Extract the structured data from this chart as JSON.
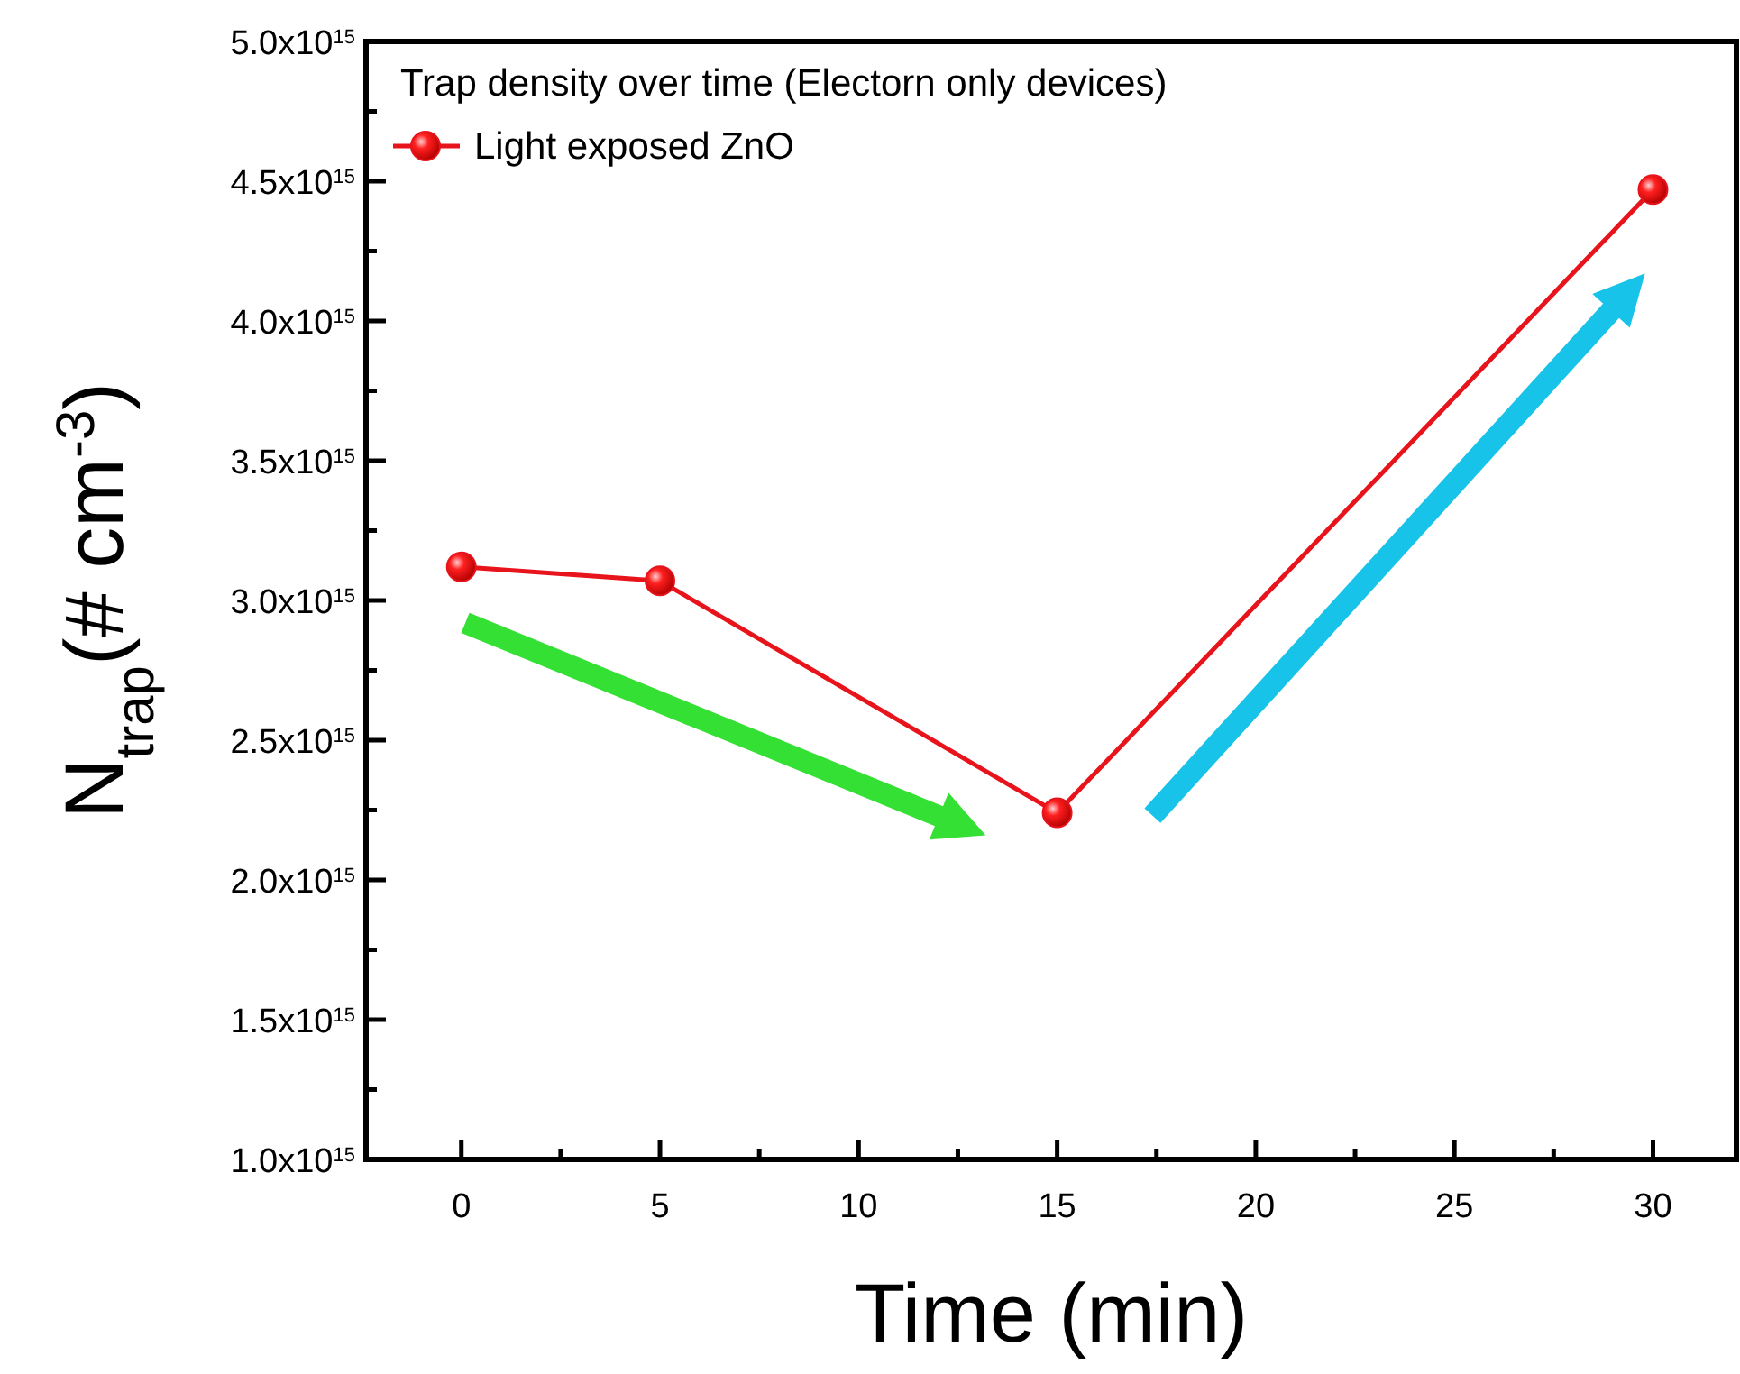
{
  "chart_data": {
    "type": "line",
    "legend_title": "Trap density over time (Electorn only devices)",
    "xlabel": "Time (min)",
    "ylabel": "N$_{trap}$(# cm$^{-3}$)",
    "x": [
      0,
      5,
      15,
      30
    ],
    "series": [
      {
        "name": "Light exposed ZnO",
        "color": "#e8141b",
        "values": [
          3120000000000000.0,
          3070000000000000.0,
          2240000000000000.0,
          4470000000000000.0
        ]
      }
    ],
    "xlim": [
      -2.4,
      32.1
    ],
    "xticks": [
      0,
      {
        "value": 2.5,
        "label": null
      },
      5,
      {
        "value": 7.5,
        "label": null
      },
      10,
      {
        "value": 12.5,
        "label": null
      },
      15,
      {
        "value": 17.5,
        "label": null
      },
      20,
      {
        "value": 22.5,
        "label": null
      },
      25,
      {
        "value": 27.5,
        "label": null
      },
      30
    ],
    "ylim": [
      1000000000000000.0,
      5000000000000000.0
    ],
    "yticks": [
      {
        "value": 1000000000000000.0,
        "label": "1.0x10$^{15}$"
      },
      {
        "value": 1250000000000000.0,
        "label": null
      },
      {
        "value": 1500000000000000.0,
        "label": "1.5x10$^{15}$"
      },
      {
        "value": 1750000000000000.0,
        "label": null
      },
      {
        "value": 2000000000000000.0,
        "label": "2.0x10$^{15}$"
      },
      {
        "value": 2250000000000000.0,
        "label": null
      },
      {
        "value": 2500000000000000.0,
        "label": "2.5x10$^{15}$"
      },
      {
        "value": 2750000000000000.0,
        "label": null
      },
      {
        "value": 3000000000000000.0,
        "label": "3.0x10$^{15}$"
      },
      {
        "value": 3250000000000000.0,
        "label": null
      },
      {
        "value": 3500000000000000.0,
        "label": "3.5x10$^{15}$"
      },
      {
        "value": 3750000000000000.0,
        "label": null
      },
      {
        "value": 4000000000000000.0,
        "label": "4.0x10$^{15}$"
      },
      {
        "value": 4250000000000000.0,
        "label": null
      },
      {
        "value": 4500000000000000.0,
        "label": "4.5x10$^{15}$"
      },
      {
        "value": 4750000000000000.0,
        "label": null
      },
      {
        "value": 5000000000000000.0,
        "label": "5.0x10$^{15}$"
      }
    ],
    "legend": "top left",
    "marker": "circle",
    "line_style": "solid",
    "grid": false
  }
}
